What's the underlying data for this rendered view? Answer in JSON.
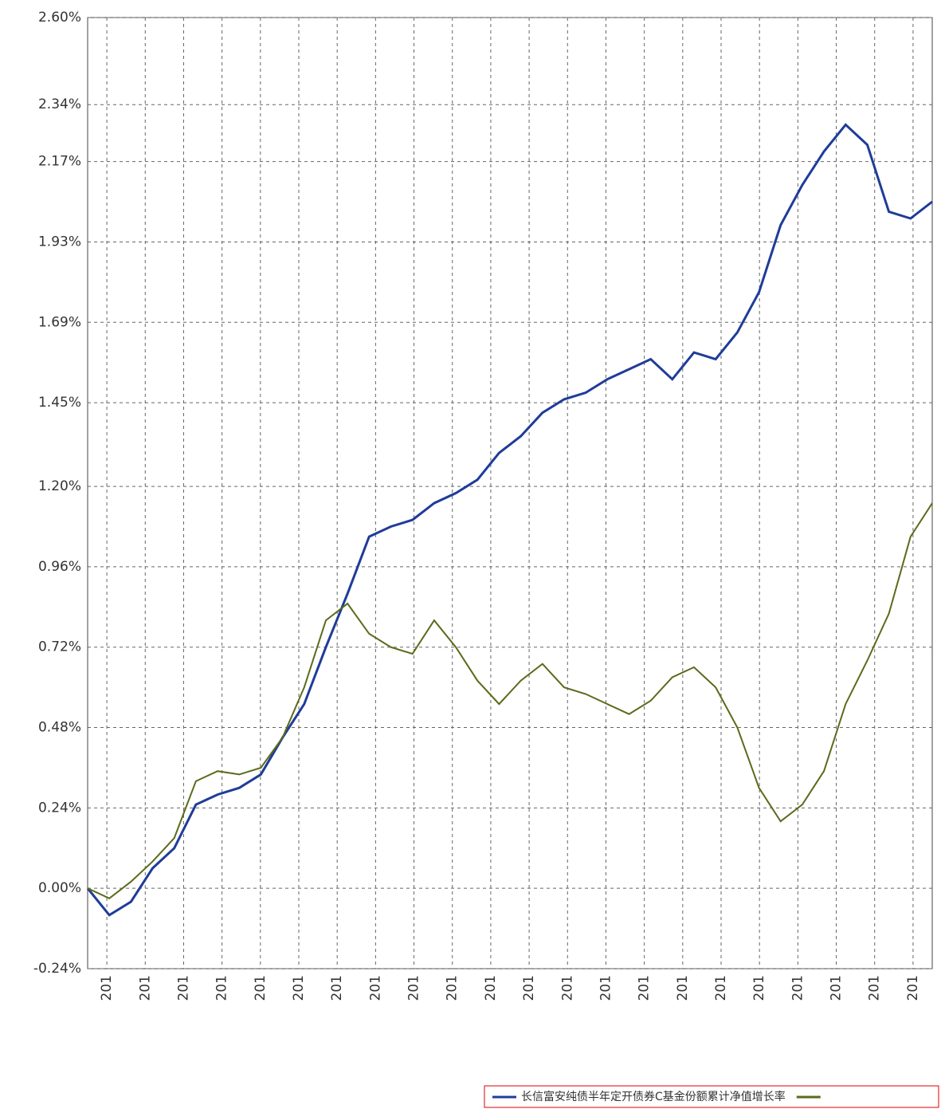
{
  "chart_data": {
    "type": "line",
    "ylim": [
      -0.24,
      2.6
    ],
    "yticks": [
      {
        "value": 2.6,
        "label": "2.60%"
      },
      {
        "value": 2.34,
        "label": "2.34%"
      },
      {
        "value": 2.17,
        "label": "2.17%"
      },
      {
        "value": 1.93,
        "label": "1.93%"
      },
      {
        "value": 1.69,
        "label": "1.69%"
      },
      {
        "value": 1.45,
        "label": "1.45%"
      },
      {
        "value": 1.2,
        "label": "1.20%"
      },
      {
        "value": 0.96,
        "label": "0.96%"
      },
      {
        "value": 0.72,
        "label": "0.72%"
      },
      {
        "value": 0.48,
        "label": "0.48%"
      },
      {
        "value": 0.24,
        "label": "0.24%"
      },
      {
        "value": 0,
        "label": "0.00%"
      },
      {
        "value": -0.24,
        "label": "-0.24%"
      }
    ],
    "xtick_labels": [
      "201",
      "201",
      "201",
      "201",
      "201",
      "201",
      "201",
      "201",
      "201",
      "201",
      "201",
      "201",
      "201",
      "201",
      "201",
      "201",
      "201",
      "201",
      "201",
      "201",
      "201",
      "201"
    ],
    "grid": true,
    "series": [
      {
        "name": "长信富安纯债半年定开债券C基金份额累计净值增长率",
        "color": "#1f3c99",
        "values": [
          0.0,
          -0.08,
          -0.04,
          0.06,
          0.12,
          0.25,
          0.28,
          0.3,
          0.34,
          0.45,
          0.55,
          0.72,
          0.88,
          1.05,
          1.08,
          1.1,
          1.15,
          1.18,
          1.22,
          1.3,
          1.35,
          1.42,
          1.46,
          1.48,
          1.52,
          1.55,
          1.58,
          1.52,
          1.6,
          1.58,
          1.66,
          1.78,
          1.98,
          2.1,
          2.2,
          2.28,
          2.22,
          2.02,
          2.0,
          2.05
        ]
      },
      {
        "color": "#5a6b1a",
        "values": [
          0.0,
          -0.03,
          0.02,
          0.08,
          0.15,
          0.32,
          0.35,
          0.34,
          0.36,
          0.45,
          0.6,
          0.8,
          0.85,
          0.76,
          0.72,
          0.7,
          0.8,
          0.72,
          0.62,
          0.55,
          0.62,
          0.67,
          0.6,
          0.58,
          0.55,
          0.52,
          0.56,
          0.63,
          0.66,
          0.6,
          0.48,
          0.3,
          0.2,
          0.25,
          0.35,
          0.55,
          0.68,
          0.82,
          1.05,
          1.15
        ]
      }
    ]
  }
}
